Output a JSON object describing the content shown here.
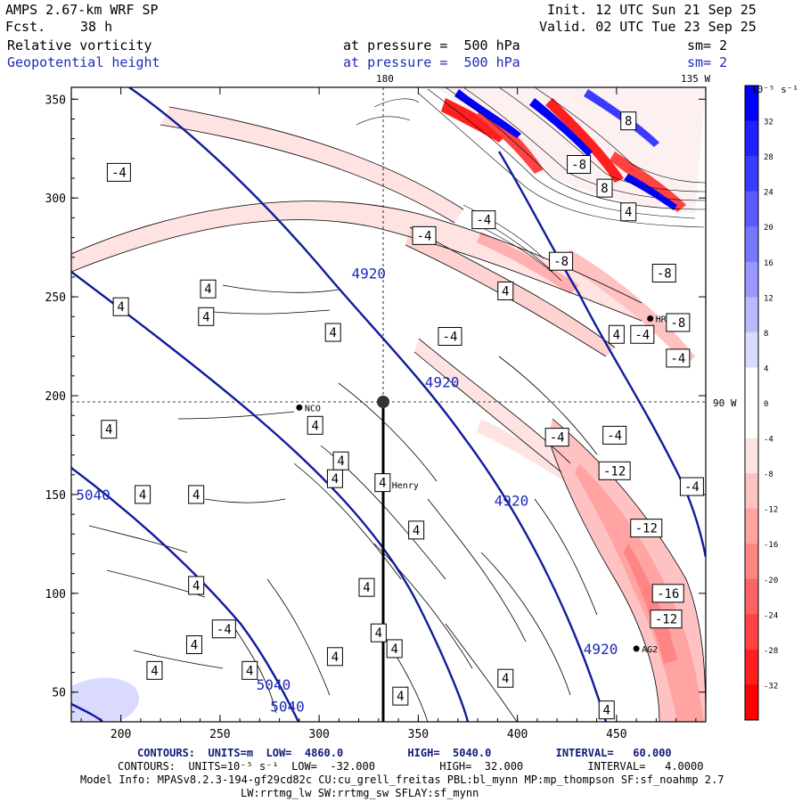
{
  "header": {
    "model": "AMPS 2.67-km WRF SP",
    "fcst_label": "Fcst.",
    "fcst_value": "38 h",
    "init": "Init. 12 UTC Sun 21 Sep 25",
    "valid": "Valid. 02 UTC Tue 23 Sep 25",
    "field1": "Relative vorticity",
    "field2": "Geopotential height",
    "level1": "at pressure =  500 hPa",
    "level2": "at pressure =  500 hPa",
    "sm1": "sm= 2",
    "sm2": "sm= 2"
  },
  "map_labels": {
    "lon_180": "180",
    "lon_135w": "135 W",
    "lon_90w": "90 W",
    "stations": [
      {
        "name": "NCO",
        "x": 290,
        "y": 194
      },
      {
        "name": "Henry",
        "x": 334,
        "y": 155
      },
      {
        "name": "HRZ",
        "x": 467,
        "y": 239
      },
      {
        "name": "AG2",
        "x": 460,
        "y": 72
      }
    ]
  },
  "x_axis": {
    "range": [
      175,
      495
    ],
    "ticks": [
      "200",
      "250",
      "300",
      "350",
      "400",
      "450"
    ]
  },
  "y_axis": {
    "range": [
      35,
      356
    ],
    "ticks": [
      "350",
      "300",
      "250",
      "200",
      "150",
      "100",
      "50"
    ]
  },
  "height_contour_labels": [
    {
      "text": "4920",
      "x": 325,
      "y": 262
    },
    {
      "text": "4920",
      "x": 362,
      "y": 207
    },
    {
      "text": "4920",
      "x": 397,
      "y": 147
    },
    {
      "text": "4920",
      "x": 442,
      "y": 72
    },
    {
      "text": "5040",
      "x": 186,
      "y": 150
    },
    {
      "text": "5040",
      "x": 277,
      "y": 54
    },
    {
      "text": "5040",
      "x": 284,
      "y": 43
    }
  ],
  "vorticity_labels": [
    {
      "text": "-4",
      "x": 199,
      "y": 313
    },
    {
      "text": "4",
      "x": 200,
      "y": 245
    },
    {
      "text": "4",
      "x": 244,
      "y": 254
    },
    {
      "text": "4",
      "x": 243,
      "y": 240
    },
    {
      "text": "-4",
      "x": 353,
      "y": 281
    },
    {
      "text": "-4",
      "x": 383,
      "y": 289
    },
    {
      "text": "4",
      "x": 308,
      "y": 158
    },
    {
      "text": "4",
      "x": 307,
      "y": 232
    },
    {
      "text": "4",
      "x": 394,
      "y": 253
    },
    {
      "text": "-4",
      "x": 366,
      "y": 230
    },
    {
      "text": "-4",
      "x": 463,
      "y": 231
    },
    {
      "text": "4",
      "x": 450,
      "y": 231
    },
    {
      "text": "-8",
      "x": 422,
      "y": 268
    },
    {
      "text": "-8",
      "x": 474,
      "y": 262
    },
    {
      "text": "-8",
      "x": 481,
      "y": 237
    },
    {
      "text": "-4",
      "x": 481,
      "y": 219
    },
    {
      "text": "4",
      "x": 456,
      "y": 293
    },
    {
      "text": "8",
      "x": 456,
      "y": 339
    },
    {
      "text": "-8",
      "x": 431,
      "y": 317
    },
    {
      "text": "8",
      "x": 444,
      "y": 305
    },
    {
      "text": "4",
      "x": 194,
      "y": 183
    },
    {
      "text": "4",
      "x": 298,
      "y": 185
    },
    {
      "text": "4",
      "x": 311,
      "y": 167
    },
    {
      "text": "4",
      "x": 332,
      "y": 156
    },
    {
      "text": "-4",
      "x": 420,
      "y": 179
    },
    {
      "text": "-4",
      "x": 449,
      "y": 180
    },
    {
      "text": "-12",
      "x": 449,
      "y": 162
    },
    {
      "text": "-4",
      "x": 488,
      "y": 154
    },
    {
      "text": "4",
      "x": 211,
      "y": 150
    },
    {
      "text": "4",
      "x": 238,
      "y": 150
    },
    {
      "text": "4",
      "x": 349,
      "y": 132
    },
    {
      "text": "-12",
      "x": 465,
      "y": 133
    },
    {
      "text": "4",
      "x": 238,
      "y": 104
    },
    {
      "text": "4",
      "x": 324,
      "y": 103
    },
    {
      "text": "-16",
      "x": 476,
      "y": 100
    },
    {
      "text": "-12",
      "x": 475,
      "y": 87
    },
    {
      "text": "4",
      "x": 330,
      "y": 80
    },
    {
      "text": "-4",
      "x": 252,
      "y": 82
    },
    {
      "text": "4",
      "x": 237,
      "y": 74
    },
    {
      "text": "4",
      "x": 308,
      "y": 68
    },
    {
      "text": "4",
      "x": 338,
      "y": 72
    },
    {
      "text": "4",
      "x": 265,
      "y": 61
    },
    {
      "text": "4",
      "x": 217,
      "y": 61
    },
    {
      "text": "4",
      "x": 394,
      "y": 57
    },
    {
      "text": "4",
      "x": 445,
      "y": 41
    },
    {
      "text": "4",
      "x": 341,
      "y": 48
    }
  ],
  "colorbar": {
    "units": "10⁻⁵ s⁻¹",
    "levels": [
      "32",
      "28",
      "24",
      "20",
      "16",
      "12",
      "8",
      "4",
      "0",
      "-4",
      "-8",
      "-12",
      "-16",
      "-20",
      "-24",
      "-28",
      "-32"
    ],
    "colors": [
      "#0000ff",
      "#2020ff",
      "#3b3bff",
      "#5a5aff",
      "#7878ff",
      "#9898ff",
      "#b9b9ff",
      "#dadaff",
      "#ffffff",
      "#ffffff",
      "#ffe2e2",
      "#ffc2c2",
      "#ffa3a3",
      "#ff8484",
      "#ff6464",
      "#ff4343",
      "#ff1f1f",
      "#ff0000"
    ]
  },
  "footer": {
    "line1": "CONTOURS:  UNITS=m  LOW=  4860.0          HIGH=  5040.0          INTERVAL=   60.000",
    "line2": "CONTOURS:  UNITS=10⁻⁵ s⁻¹  LOW=  -32.000          HIGH=  32.000          INTERVAL=   4.0000",
    "line3": "Model Info: MPASv8.2.3-194-gf29cd82c CU:cu_grell_freitas PBL:bl_mynn MP:mp_thompson SF:sf_noahmp 2.7",
    "line4": "LW:rrtmg_lw SW:rrtmg_sw SFLAY:sf_mynn"
  }
}
